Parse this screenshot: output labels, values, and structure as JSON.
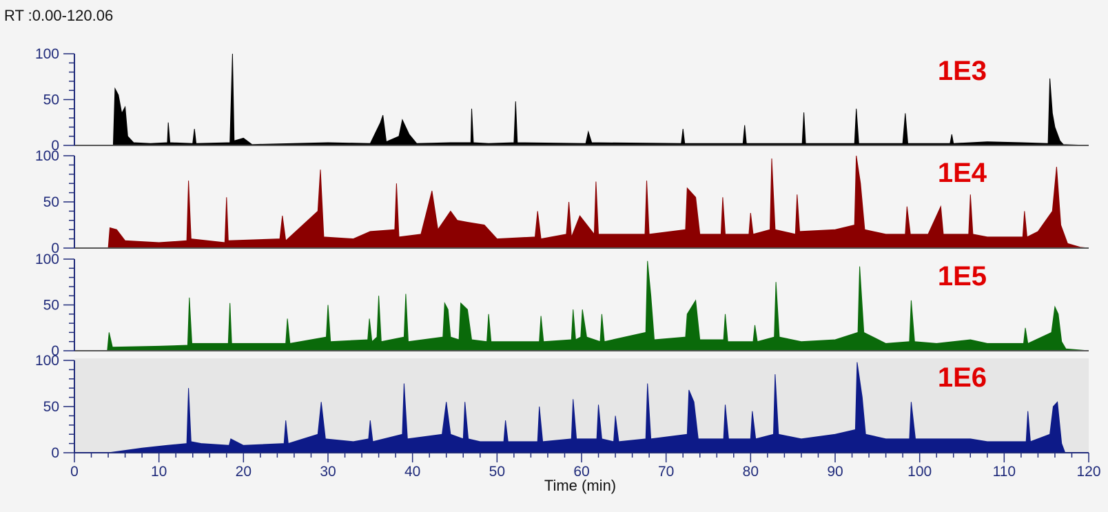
{
  "header": {
    "range_label": "RT :0.00-120.06"
  },
  "chart_data": {
    "type": "area",
    "xlabel": "Time (min)",
    "xlim": [
      0,
      120
    ],
    "x_ticks": [
      0,
      10,
      20,
      30,
      40,
      50,
      60,
      70,
      80,
      90,
      100,
      110,
      120
    ],
    "y_ticks": [
      0,
      50,
      100
    ],
    "ylim": [
      0,
      100
    ],
    "series": [
      {
        "name": "1E3",
        "color": "#000000",
        "label_color": "#e00000",
        "points": [
          [
            0,
            0
          ],
          [
            4.6,
            0
          ],
          [
            4.8,
            62
          ],
          [
            5.2,
            55
          ],
          [
            5.6,
            35
          ],
          [
            6.0,
            42
          ],
          [
            6.3,
            10
          ],
          [
            7.0,
            3
          ],
          [
            9,
            2
          ],
          [
            11.0,
            3
          ],
          [
            11.1,
            25
          ],
          [
            11.3,
            3
          ],
          [
            14.0,
            2
          ],
          [
            14.2,
            18
          ],
          [
            14.4,
            2
          ],
          [
            18.4,
            3
          ],
          [
            18.7,
            100
          ],
          [
            18.9,
            5
          ],
          [
            20,
            8
          ],
          [
            21,
            1
          ],
          [
            30,
            3
          ],
          [
            35,
            2
          ],
          [
            36.2,
            25
          ],
          [
            36.5,
            33
          ],
          [
            36.9,
            4
          ],
          [
            38.4,
            10
          ],
          [
            38.8,
            28
          ],
          [
            39.6,
            12
          ],
          [
            40.5,
            2
          ],
          [
            44.5,
            3
          ],
          [
            46.9,
            3
          ],
          [
            47.0,
            40
          ],
          [
            47.2,
            3
          ],
          [
            49,
            2
          ],
          [
            52.0,
            3
          ],
          [
            52.2,
            48
          ],
          [
            52.4,
            3
          ],
          [
            60.5,
            2
          ],
          [
            60.8,
            15
          ],
          [
            61.2,
            3
          ],
          [
            71.8,
            2
          ],
          [
            72.0,
            18
          ],
          [
            72.2,
            2
          ],
          [
            79.1,
            2
          ],
          [
            79.3,
            22
          ],
          [
            79.5,
            2
          ],
          [
            86.1,
            2
          ],
          [
            86.3,
            36
          ],
          [
            86.5,
            2
          ],
          [
            92.3,
            2
          ],
          [
            92.5,
            40
          ],
          [
            92.8,
            2
          ],
          [
            98.0,
            2
          ],
          [
            98.3,
            35
          ],
          [
            98.6,
            2
          ],
          [
            103.6,
            2
          ],
          [
            103.8,
            12
          ],
          [
            104.0,
            2
          ],
          [
            108,
            4
          ],
          [
            112,
            3
          ],
          [
            115.2,
            2
          ],
          [
            115.4,
            73
          ],
          [
            115.7,
            35
          ],
          [
            116.0,
            20
          ],
          [
            116.6,
            5
          ],
          [
            117,
            1
          ],
          [
            120,
            0
          ]
        ]
      },
      {
        "name": "1E4",
        "color": "#8b0000",
        "label_color": "#e00000",
        "points": [
          [
            0,
            0
          ],
          [
            4.0,
            0
          ],
          [
            4.2,
            22
          ],
          [
            5.0,
            20
          ],
          [
            6,
            8
          ],
          [
            10,
            6
          ],
          [
            13.3,
            8
          ],
          [
            13.5,
            73
          ],
          [
            13.8,
            10
          ],
          [
            17.8,
            6
          ],
          [
            18.0,
            55
          ],
          [
            18.2,
            8
          ],
          [
            24.3,
            10
          ],
          [
            24.6,
            35
          ],
          [
            25.0,
            8
          ],
          [
            28.8,
            40
          ],
          [
            29.1,
            85
          ],
          [
            29.5,
            12
          ],
          [
            33,
            10
          ],
          [
            35,
            18
          ],
          [
            37.9,
            20
          ],
          [
            38.1,
            70
          ],
          [
            38.4,
            12
          ],
          [
            41.0,
            15
          ],
          [
            42.3,
            62
          ],
          [
            43.0,
            20
          ],
          [
            44.5,
            40
          ],
          [
            45.3,
            30
          ],
          [
            46.5,
            28
          ],
          [
            48.5,
            25
          ],
          [
            50,
            10
          ],
          [
            54.5,
            12
          ],
          [
            54.8,
            40
          ],
          [
            55.2,
            10
          ],
          [
            58.2,
            15
          ],
          [
            58.5,
            50
          ],
          [
            58.8,
            12
          ],
          [
            59.8,
            35
          ],
          [
            61.5,
            15
          ],
          [
            61.7,
            72
          ],
          [
            62.0,
            15
          ],
          [
            64,
            15
          ],
          [
            67.5,
            15
          ],
          [
            67.7,
            73
          ],
          [
            68.0,
            15
          ],
          [
            72.3,
            20
          ],
          [
            72.5,
            65
          ],
          [
            73.5,
            55
          ],
          [
            74,
            15
          ],
          [
            76.5,
            15
          ],
          [
            76.7,
            55
          ],
          [
            77.0,
            15
          ],
          [
            79.8,
            15
          ],
          [
            80.0,
            38
          ],
          [
            80.3,
            15
          ],
          [
            82.3,
            20
          ],
          [
            82.5,
            97
          ],
          [
            82.9,
            20
          ],
          [
            85.3,
            15
          ],
          [
            85.5,
            58
          ],
          [
            85.8,
            18
          ],
          [
            90,
            20
          ],
          [
            92.3,
            25
          ],
          [
            92.5,
            100
          ],
          [
            93.0,
            70
          ],
          [
            93.5,
            20
          ],
          [
            96,
            15
          ],
          [
            98.3,
            15
          ],
          [
            98.5,
            45
          ],
          [
            98.9,
            15
          ],
          [
            101,
            15
          ],
          [
            102.5,
            45
          ],
          [
            102.8,
            15
          ],
          [
            105.8,
            15
          ],
          [
            106.0,
            58
          ],
          [
            106.3,
            15
          ],
          [
            108,
            12
          ],
          [
            112.2,
            12
          ],
          [
            112.4,
            40
          ],
          [
            112.7,
            12
          ],
          [
            114,
            18
          ],
          [
            115.7,
            40
          ],
          [
            116.2,
            88
          ],
          [
            116.7,
            25
          ],
          [
            117.5,
            5
          ],
          [
            119,
            1
          ],
          [
            120,
            0
          ]
        ]
      },
      {
        "name": "1E5",
        "color": "#0a6a0a",
        "label_color": "#e00000",
        "points": [
          [
            0,
            0
          ],
          [
            3.9,
            0
          ],
          [
            4.1,
            20
          ],
          [
            4.5,
            4
          ],
          [
            10,
            5
          ],
          [
            13.4,
            6
          ],
          [
            13.6,
            58
          ],
          [
            13.9,
            8
          ],
          [
            18.2,
            8
          ],
          [
            18.4,
            52
          ],
          [
            18.6,
            8
          ],
          [
            25.0,
            8
          ],
          [
            25.2,
            35
          ],
          [
            25.5,
            8
          ],
          [
            29.8,
            15
          ],
          [
            30.0,
            50
          ],
          [
            30.3,
            10
          ],
          [
            34.7,
            12
          ],
          [
            34.9,
            35
          ],
          [
            35.2,
            10
          ],
          [
            35.8,
            15
          ],
          [
            36.0,
            60
          ],
          [
            36.3,
            10
          ],
          [
            39.0,
            15
          ],
          [
            39.2,
            62
          ],
          [
            39.5,
            10
          ],
          [
            43.6,
            15
          ],
          [
            43.8,
            52
          ],
          [
            44.2,
            45
          ],
          [
            44.5,
            15
          ],
          [
            45.5,
            12
          ],
          [
            45.7,
            52
          ],
          [
            46.5,
            45
          ],
          [
            47.0,
            12
          ],
          [
            48.8,
            10
          ],
          [
            49.0,
            40
          ],
          [
            49.3,
            10
          ],
          [
            55.0,
            10
          ],
          [
            55.2,
            38
          ],
          [
            55.5,
            10
          ],
          [
            58.8,
            12
          ],
          [
            59.0,
            45
          ],
          [
            59.3,
            12
          ],
          [
            59.9,
            15
          ],
          [
            60.1,
            45
          ],
          [
            60.6,
            15
          ],
          [
            62.2,
            10
          ],
          [
            62.4,
            40
          ],
          [
            62.7,
            10
          ],
          [
            67.6,
            20
          ],
          [
            67.8,
            98
          ],
          [
            68.2,
            60
          ],
          [
            68.6,
            12
          ],
          [
            72.3,
            15
          ],
          [
            72.5,
            40
          ],
          [
            73.5,
            55
          ],
          [
            74,
            12
          ],
          [
            76.8,
            12
          ],
          [
            77.0,
            40
          ],
          [
            77.3,
            10
          ],
          [
            80.3,
            10
          ],
          [
            80.5,
            28
          ],
          [
            80.8,
            10
          ],
          [
            82.8,
            15
          ],
          [
            83.0,
            75
          ],
          [
            83.4,
            15
          ],
          [
            86,
            10
          ],
          [
            90,
            12
          ],
          [
            92.7,
            20
          ],
          [
            92.9,
            92
          ],
          [
            93.4,
            20
          ],
          [
            96,
            8
          ],
          [
            98.8,
            10
          ],
          [
            99.0,
            55
          ],
          [
            99.4,
            10
          ],
          [
            102,
            8
          ],
          [
            106,
            12
          ],
          [
            108,
            8
          ],
          [
            112.3,
            8
          ],
          [
            112.5,
            25
          ],
          [
            112.8,
            8
          ],
          [
            115.6,
            20
          ],
          [
            116.0,
            48
          ],
          [
            116.4,
            40
          ],
          [
            116.8,
            10
          ],
          [
            117.3,
            2
          ],
          [
            120,
            0
          ]
        ]
      },
      {
        "name": "1E6",
        "color": "#0d1a88",
        "label_color": "#e00000",
        "points": [
          [
            0,
            0
          ],
          [
            4,
            0
          ],
          [
            8,
            5
          ],
          [
            11,
            8
          ],
          [
            13.3,
            10
          ],
          [
            13.5,
            70
          ],
          [
            13.8,
            12
          ],
          [
            15,
            10
          ],
          [
            18.3,
            8
          ],
          [
            18.5,
            15
          ],
          [
            20,
            8
          ],
          [
            24.8,
            10
          ],
          [
            25.0,
            35
          ],
          [
            25.3,
            10
          ],
          [
            28.8,
            20
          ],
          [
            29.2,
            55
          ],
          [
            29.7,
            15
          ],
          [
            33,
            12
          ],
          [
            34.8,
            15
          ],
          [
            35.0,
            35
          ],
          [
            35.3,
            12
          ],
          [
            38.8,
            20
          ],
          [
            39.0,
            75
          ],
          [
            39.4,
            15
          ],
          [
            43.5,
            20
          ],
          [
            44.0,
            55
          ],
          [
            44.5,
            20
          ],
          [
            46.0,
            15
          ],
          [
            46.2,
            55
          ],
          [
            46.6,
            15
          ],
          [
            48,
            12
          ],
          [
            50.8,
            12
          ],
          [
            51.0,
            35
          ],
          [
            51.3,
            12
          ],
          [
            54.8,
            12
          ],
          [
            55.0,
            50
          ],
          [
            55.4,
            12
          ],
          [
            58.8,
            15
          ],
          [
            59.0,
            58
          ],
          [
            59.4,
            15
          ],
          [
            61.8,
            15
          ],
          [
            62.0,
            52
          ],
          [
            62.4,
            15
          ],
          [
            63.8,
            12
          ],
          [
            64.0,
            40
          ],
          [
            64.4,
            12
          ],
          [
            67.6,
            15
          ],
          [
            67.8,
            75
          ],
          [
            68.2,
            15
          ],
          [
            72.5,
            20
          ],
          [
            72.7,
            68
          ],
          [
            73.3,
            55
          ],
          [
            73.8,
            15
          ],
          [
            76.8,
            15
          ],
          [
            77.0,
            52
          ],
          [
            77.4,
            15
          ],
          [
            80.0,
            15
          ],
          [
            80.2,
            45
          ],
          [
            80.6,
            15
          ],
          [
            82.7,
            20
          ],
          [
            82.9,
            85
          ],
          [
            83.3,
            20
          ],
          [
            86,
            15
          ],
          [
            90,
            20
          ],
          [
            92.4,
            25
          ],
          [
            92.6,
            98
          ],
          [
            93.2,
            60
          ],
          [
            93.6,
            20
          ],
          [
            96,
            15
          ],
          [
            98.8,
            15
          ],
          [
            99.0,
            55
          ],
          [
            99.5,
            15
          ],
          [
            102,
            15
          ],
          [
            106,
            15
          ],
          [
            108,
            12
          ],
          [
            112.6,
            12
          ],
          [
            112.8,
            45
          ],
          [
            113.1,
            12
          ],
          [
            115.4,
            20
          ],
          [
            115.8,
            50
          ],
          [
            116.3,
            55
          ],
          [
            116.8,
            10
          ],
          [
            117.2,
            0
          ],
          [
            120,
            0
          ]
        ]
      }
    ]
  }
}
